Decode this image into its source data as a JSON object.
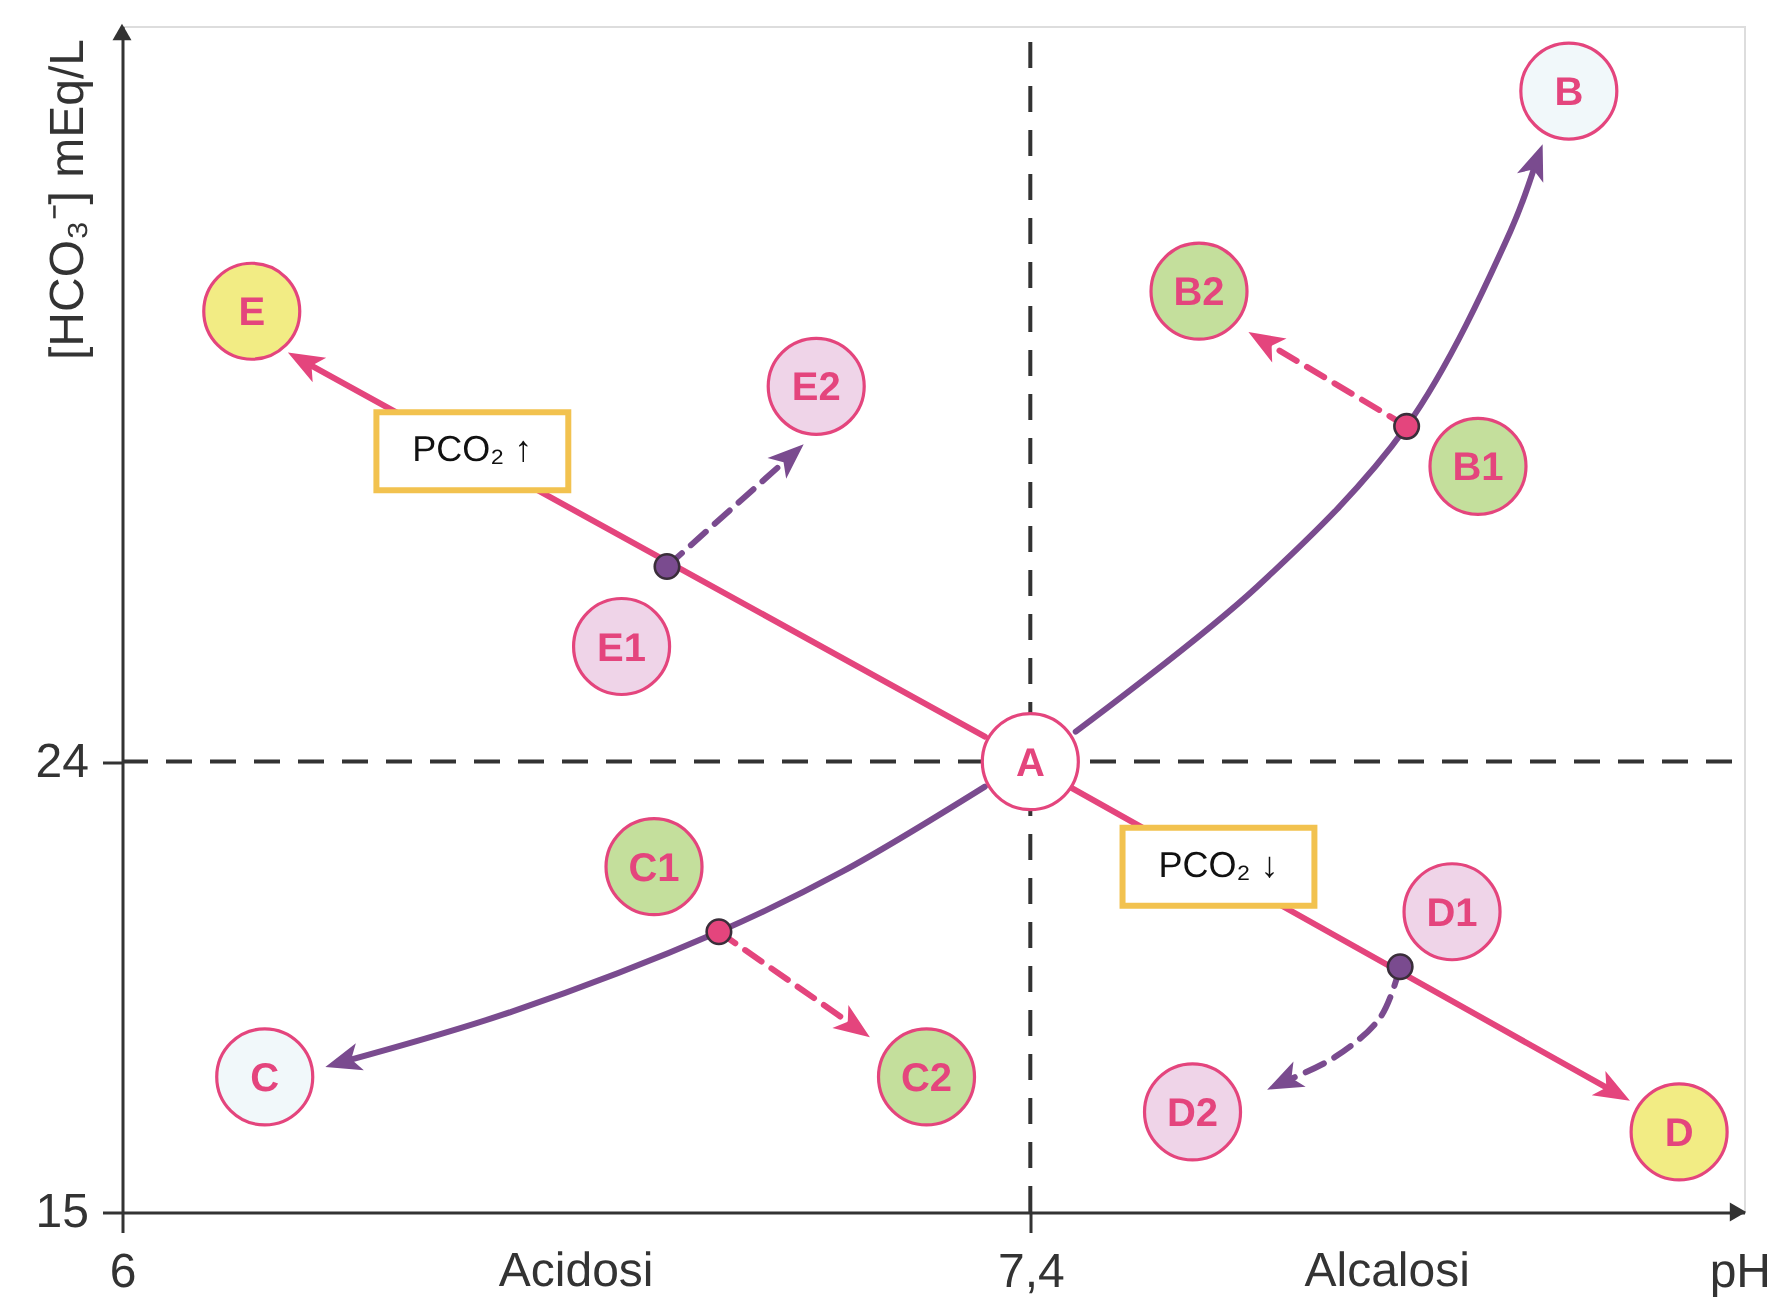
{
  "chart_data": {
    "type": "line",
    "xlabel": "pH",
    "ylabel": "[HCO₃⁻] mEq/L",
    "xlim": [
      6,
      8.5
    ],
    "ylim": [
      15,
      38.7
    ],
    "xticks": [
      6,
      {
        "value": 7.4,
        "label": "7,4"
      }
    ],
    "yticks": [
      15,
      24
    ],
    "ref_lines": [
      {
        "axis": "x",
        "value": 7.4,
        "line_style": "dashed",
        "color": "#333333"
      },
      {
        "axis": "y",
        "value": 24,
        "line_style": "dashed",
        "color": "#333333"
      }
    ],
    "annotations": [
      "Acidosi",
      "Alcalosi",
      {
        "text": "PCO₂ ↑",
        "x": 6.54,
        "y": 30.2
      },
      {
        "text": "PCO₂ ↓",
        "x": 7.69,
        "y": 21.9
      }
    ],
    "series": [
      {
        "color": "#e4457d",
        "x": [
          7.33,
          6.28
        ],
        "values": [
          24.5,
          32.0
        ]
      },
      {
        "color": "#e4457d",
        "x": [
          7.46,
          8.3
        ],
        "values": [
          23.5,
          17.4
        ]
      },
      {
        "color": "#7a4b8f",
        "x": [
          7.47,
          7.75,
          7.98,
          8.14,
          8.18
        ],
        "values": [
          24.6,
          27.5,
          30.7,
          34.6,
          36.0
        ]
      },
      {
        "color": "#7a4b8f",
        "x": [
          7.33,
          7.11,
          6.92,
          6.6,
          6.34
        ],
        "values": [
          23.5,
          21.8,
          20.6,
          19.0,
          18.0
        ]
      },
      {
        "color": "#7a4b8f",
        "line_style": "dashed",
        "x": [
          6.84,
          7.03
        ],
        "values": [
          27.9,
          30.1
        ]
      },
      {
        "color": "#e4457d",
        "line_style": "dashed",
        "x": [
          7.98,
          7.76
        ],
        "values": [
          30.7,
          32.4
        ]
      },
      {
        "color": "#e4457d",
        "line_style": "dashed",
        "x": [
          6.92,
          7.13
        ],
        "values": [
          20.6,
          18.7
        ]
      },
      {
        "color": "#7a4b8f",
        "line_style": "dashed",
        "x": [
          7.97,
          7.94,
          7.87,
          7.79
        ],
        "values": [
          19.9,
          18.9,
          18.1,
          17.6
        ]
      },
      {
        "type": "scatter",
        "marker": "circle",
        "x": [
          6.84,
          7.98,
          6.92,
          7.97
        ],
        "values": [
          27.9,
          30.7,
          20.6,
          19.9
        ],
        "colors": [
          "#7a4b8f",
          "#e4457d",
          "#e4457d",
          "#7a4b8f"
        ]
      },
      {
        "type": "scatter",
        "marker": "circle",
        "color": "#e4457d",
        "x": [
          7.4,
          8.23,
          8.09,
          7.66,
          6.22,
          6.82,
          7.24,
          8.4,
          8.05,
          7.65,
          6.2,
          6.77,
          7.07
        ],
        "values": [
          24,
          37.4,
          29.9,
          33.4,
          17.7,
          21.9,
          17.7,
          16.6,
          21,
          17,
          33,
          26.3,
          31.5
        ],
        "colors": [
          "#ffffff",
          "#f1f8fa",
          "#c4df9c",
          "#c4df9c",
          "#f1f8fa",
          "#c4df9c",
          "#c4df9c",
          "#f2ec84",
          "#efd4e8",
          "#efd4e8",
          "#f2ec84",
          "#efd4e8",
          "#efd4e8"
        ],
        "value_labels": [
          "A",
          "B",
          "B1",
          "B2",
          "C",
          "C1",
          "C2",
          "D",
          "D1",
          "D2",
          "E",
          "E1",
          "E2"
        ]
      }
    ]
  }
}
